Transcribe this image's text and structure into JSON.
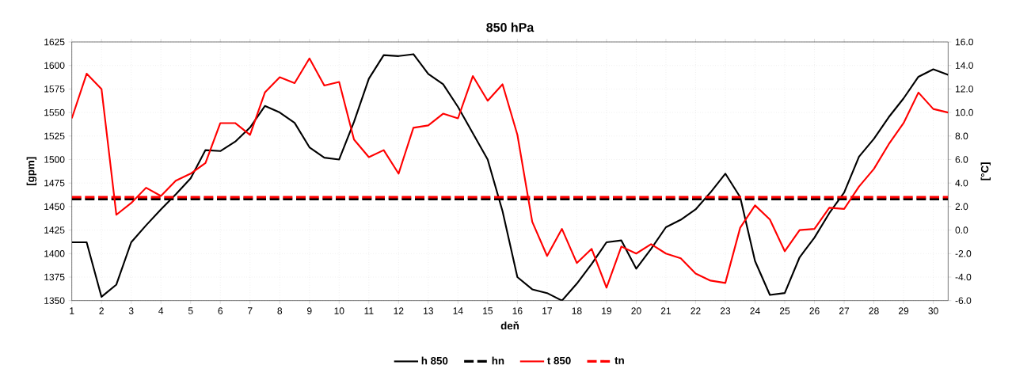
{
  "chart_data": {
    "type": "line",
    "title": "850 hPa",
    "xlabel": "deň",
    "ylabel": "[gpm]",
    "y2label": "[°C]",
    "x": [
      1,
      1.5,
      2,
      2.5,
      3,
      3.5,
      4,
      4.5,
      5,
      5.5,
      6,
      6.5,
      7,
      7.5,
      8,
      8.5,
      9,
      9.5,
      10,
      10.5,
      11,
      11.5,
      12,
      12.5,
      13,
      13.5,
      14,
      14.5,
      15,
      15.5,
      16,
      16.5,
      17,
      17.5,
      18,
      18.5,
      19,
      19.5,
      20,
      20.5,
      21,
      21.5,
      22,
      22.5,
      23,
      23.5,
      24,
      24.5,
      25,
      25.5,
      26,
      26.5,
      27,
      27.5,
      28,
      28.5,
      29,
      29.5,
      30,
      30.5
    ],
    "series": [
      {
        "name": "h  850",
        "color": "#000000",
        "line_style": "solid",
        "values": [
          1412,
          1412,
          1354,
          1367,
          1412,
          1430,
          1447,
          1463,
          1480,
          1510,
          1509,
          1519,
          1534,
          1557,
          1550,
          1539,
          1513,
          1502,
          1500,
          1540,
          1586,
          1611,
          1610,
          1612,
          1591,
          1580,
          1556,
          1528,
          1500,
          1445,
          1375,
          1362,
          1358,
          1350,
          1368,
          1389,
          1412,
          1414,
          1384,
          1405,
          1428,
          1436,
          1447,
          1465,
          1485,
          1460,
          1392,
          1356,
          1358,
          1396,
          1417,
          1443,
          1465,
          1503,
          1522,
          1545,
          1565,
          1588,
          1596,
          1590
        ]
      },
      {
        "name": "hn",
        "color": "#000000",
        "line_style": "dashed",
        "values": [
          1458,
          1458,
          1458,
          1458,
          1458,
          1458,
          1458,
          1458,
          1458,
          1458,
          1458,
          1458,
          1458,
          1458,
          1458,
          1458,
          1458,
          1458,
          1458,
          1458,
          1458,
          1458,
          1458,
          1458,
          1458,
          1458,
          1458,
          1458,
          1458,
          1458,
          1458,
          1458,
          1458,
          1458,
          1458,
          1458,
          1458,
          1458,
          1458,
          1458,
          1458,
          1458,
          1458,
          1458,
          1458,
          1458,
          1458,
          1458,
          1458,
          1458,
          1458,
          1458,
          1458,
          1458,
          1458,
          1458,
          1458,
          1458,
          1458,
          1458
        ]
      },
      {
        "name": "t  850",
        "color": "#ff0000",
        "line_style": "solid",
        "axis": "y2",
        "values": [
          9.5,
          13.3,
          12.0,
          1.3,
          2.3,
          3.6,
          2.9,
          4.2,
          4.8,
          5.7,
          9.1,
          9.1,
          8.1,
          11.7,
          13.0,
          12.5,
          14.6,
          12.3,
          12.6,
          7.7,
          6.2,
          6.8,
          4.8,
          8.7,
          8.9,
          9.9,
          9.5,
          13.1,
          11.0,
          12.4,
          8.1,
          0.7,
          -2.2,
          0.1,
          -2.8,
          -1.6,
          -4.9,
          -1.4,
          -2.0,
          -1.2,
          -2.0,
          -2.4,
          -3.7,
          -4.3,
          -4.5,
          0.2,
          2.1,
          0.9,
          -1.8,
          0.0,
          0.1,
          1.9,
          1.8,
          3.7,
          5.2,
          7.3,
          9.1,
          11.7,
          10.3,
          10.0
        ]
      },
      {
        "name": "tn",
        "color": "#ff0000",
        "line_style": "dashed",
        "axis": "y2",
        "values": [
          2.8,
          2.8,
          2.8,
          2.8,
          2.8,
          2.8,
          2.8,
          2.8,
          2.8,
          2.8,
          2.8,
          2.8,
          2.8,
          2.8,
          2.8,
          2.8,
          2.8,
          2.8,
          2.8,
          2.8,
          2.8,
          2.8,
          2.8,
          2.8,
          2.8,
          2.8,
          2.8,
          2.8,
          2.8,
          2.8,
          2.8,
          2.8,
          2.8,
          2.8,
          2.8,
          2.8,
          2.8,
          2.8,
          2.8,
          2.8,
          2.8,
          2.8,
          2.8,
          2.8,
          2.8,
          2.8,
          2.8,
          2.8,
          2.8,
          2.8,
          2.8,
          2.8,
          2.8,
          2.8,
          2.8,
          2.8,
          2.8,
          2.8,
          2.8,
          2.8
        ]
      }
    ],
    "xlim": [
      1,
      30.5
    ],
    "xticks": [
      1,
      2,
      3,
      4,
      5,
      6,
      7,
      8,
      9,
      10,
      11,
      12,
      13,
      14,
      15,
      16,
      17,
      18,
      19,
      20,
      21,
      22,
      23,
      24,
      25,
      26,
      27,
      28,
      29,
      30
    ],
    "ylim": [
      1350,
      1625
    ],
    "yticks": [
      1350,
      1375,
      1400,
      1425,
      1450,
      1475,
      1500,
      1525,
      1550,
      1575,
      1600,
      1625
    ],
    "y2lim": [
      -6,
      16
    ],
    "y2ticks": [
      {
        "value": -6,
        "label": "-6.0"
      },
      {
        "value": -4,
        "label": "-4.0"
      },
      {
        "value": -2,
        "label": "-2.0"
      },
      {
        "value": 0,
        "label": "0.0"
      },
      {
        "value": 2,
        "label": "2.0"
      },
      {
        "value": 4,
        "label": "4.0"
      },
      {
        "value": 6,
        "label": "6.0"
      },
      {
        "value": 8,
        "label": "8.0"
      },
      {
        "value": 10,
        "label": "10.0"
      },
      {
        "value": 12,
        "label": "12.0"
      },
      {
        "value": 14,
        "label": "14.0"
      },
      {
        "value": 16,
        "label": "16.0"
      }
    ],
    "grid": true,
    "legend": "bottom"
  }
}
